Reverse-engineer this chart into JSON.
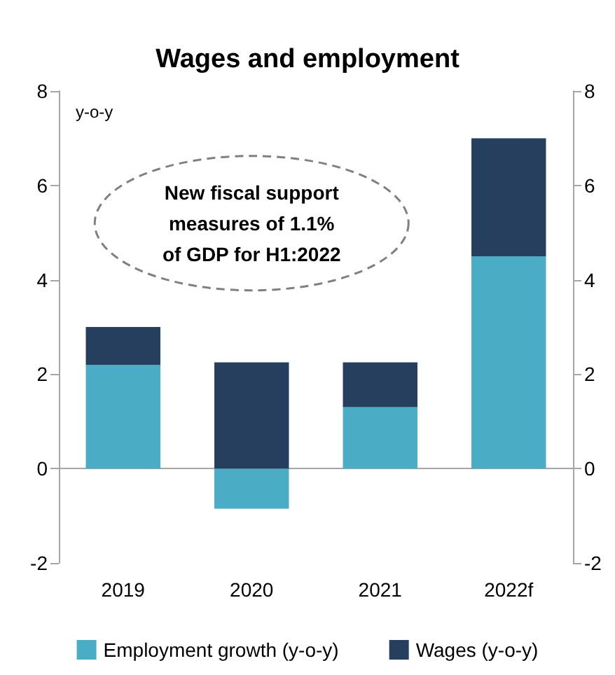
{
  "chart_data": {
    "type": "bar",
    "stacked": true,
    "title": "Wages and employment",
    "ylabel": "y-o-y",
    "categories": [
      "2019",
      "2020",
      "2021",
      "2022f"
    ],
    "series": [
      {
        "name": "Employment growth (y-o-y)",
        "color": "#4bacc6",
        "values": [
          2.2,
          -0.85,
          1.3,
          4.5
        ]
      },
      {
        "name": "Wages (y-o-y)",
        "color": "#263f5f",
        "values": [
          0.8,
          2.25,
          0.95,
          2.5
        ]
      }
    ],
    "ylim": [
      -2,
      8
    ],
    "yticks": [
      -2,
      0,
      2,
      4,
      6,
      8
    ],
    "y2lim": [
      -2,
      8
    ],
    "y2ticks": [
      -2,
      0,
      2,
      4,
      6,
      8
    ],
    "annotations": [
      "New fiscal support measures of 1.1% of GDP for H1:2022"
    ],
    "legend": "bottom"
  }
}
